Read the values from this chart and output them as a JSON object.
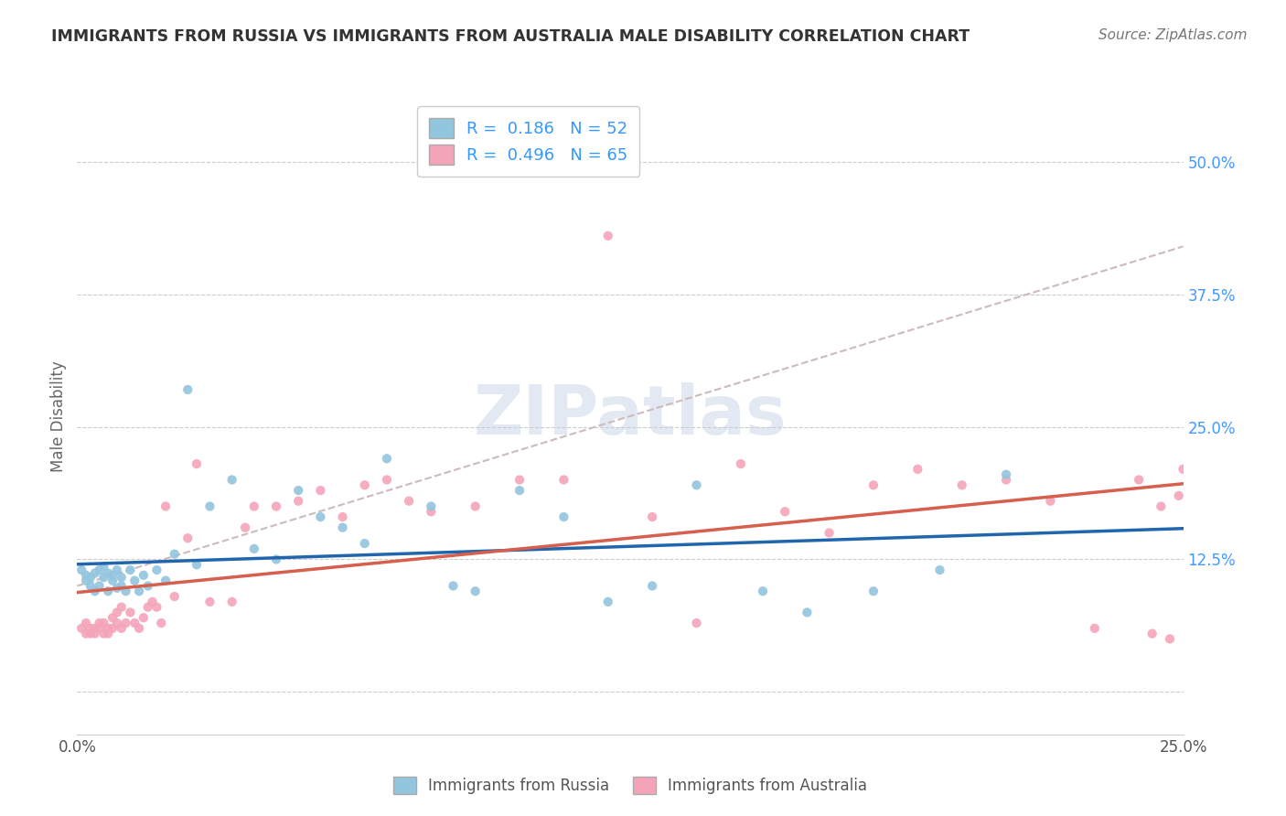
{
  "title": "IMMIGRANTS FROM RUSSIA VS IMMIGRANTS FROM AUSTRALIA MALE DISABILITY CORRELATION CHART",
  "source": "Source: ZipAtlas.com",
  "ylabel": "Male Disability",
  "xlim": [
    0.0,
    0.25
  ],
  "ylim": [
    -0.04,
    0.56
  ],
  "yticks": [
    0.0,
    0.125,
    0.25,
    0.375,
    0.5
  ],
  "ytick_labels": [
    "",
    "12.5%",
    "25.0%",
    "37.5%",
    "50.0%"
  ],
  "xticks": [
    0.0,
    0.25
  ],
  "xtick_labels": [
    "0.0%",
    "25.0%"
  ],
  "watermark": "ZIPatlas",
  "series1_color": "#92c5de",
  "series2_color": "#f4a4b8",
  "trendline1_color": "#2166ac",
  "trendline2_color": "#d6604d",
  "dashed_color": "#ccbbbb",
  "background_color": "#ffffff",
  "grid_color": "#cccccc",
  "russia_x": [
    0.001,
    0.002,
    0.002,
    0.003,
    0.003,
    0.004,
    0.004,
    0.005,
    0.005,
    0.006,
    0.006,
    0.007,
    0.007,
    0.008,
    0.008,
    0.009,
    0.009,
    0.01,
    0.01,
    0.011,
    0.012,
    0.013,
    0.014,
    0.015,
    0.016,
    0.018,
    0.02,
    0.022,
    0.025,
    0.027,
    0.03,
    0.035,
    0.04,
    0.045,
    0.05,
    0.055,
    0.06,
    0.065,
    0.07,
    0.08,
    0.085,
    0.09,
    0.1,
    0.11,
    0.12,
    0.13,
    0.14,
    0.155,
    0.165,
    0.18,
    0.195,
    0.21
  ],
  "russia_y": [
    0.115,
    0.11,
    0.105,
    0.1,
    0.108,
    0.112,
    0.095,
    0.115,
    0.1,
    0.118,
    0.108,
    0.112,
    0.095,
    0.105,
    0.11,
    0.098,
    0.115,
    0.1,
    0.108,
    0.095,
    0.115,
    0.105,
    0.095,
    0.11,
    0.1,
    0.115,
    0.105,
    0.13,
    0.285,
    0.12,
    0.175,
    0.2,
    0.135,
    0.125,
    0.19,
    0.165,
    0.155,
    0.14,
    0.22,
    0.175,
    0.1,
    0.095,
    0.19,
    0.165,
    0.085,
    0.1,
    0.195,
    0.095,
    0.075,
    0.095,
    0.115,
    0.205
  ],
  "australia_x": [
    0.001,
    0.002,
    0.002,
    0.003,
    0.003,
    0.004,
    0.004,
    0.005,
    0.005,
    0.006,
    0.006,
    0.007,
    0.007,
    0.008,
    0.008,
    0.009,
    0.009,
    0.01,
    0.01,
    0.011,
    0.012,
    0.013,
    0.014,
    0.015,
    0.016,
    0.017,
    0.018,
    0.019,
    0.02,
    0.022,
    0.025,
    0.027,
    0.03,
    0.035,
    0.038,
    0.04,
    0.045,
    0.05,
    0.055,
    0.06,
    0.065,
    0.07,
    0.075,
    0.08,
    0.09,
    0.1,
    0.11,
    0.12,
    0.13,
    0.14,
    0.15,
    0.16,
    0.17,
    0.18,
    0.19,
    0.2,
    0.21,
    0.22,
    0.23,
    0.24,
    0.243,
    0.245,
    0.247,
    0.249,
    0.25
  ],
  "australia_y": [
    0.06,
    0.055,
    0.065,
    0.055,
    0.06,
    0.055,
    0.06,
    0.065,
    0.06,
    0.055,
    0.065,
    0.06,
    0.055,
    0.07,
    0.06,
    0.065,
    0.075,
    0.08,
    0.06,
    0.065,
    0.075,
    0.065,
    0.06,
    0.07,
    0.08,
    0.085,
    0.08,
    0.065,
    0.175,
    0.09,
    0.145,
    0.215,
    0.085,
    0.085,
    0.155,
    0.175,
    0.175,
    0.18,
    0.19,
    0.165,
    0.195,
    0.2,
    0.18,
    0.17,
    0.175,
    0.2,
    0.2,
    0.43,
    0.165,
    0.065,
    0.215,
    0.17,
    0.15,
    0.195,
    0.21,
    0.195,
    0.2,
    0.18,
    0.06,
    0.2,
    0.055,
    0.175,
    0.05,
    0.185,
    0.21
  ]
}
